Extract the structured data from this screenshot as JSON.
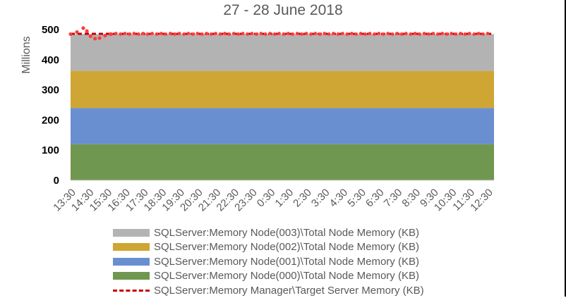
{
  "chart_data": {
    "type": "area",
    "title": "27 - 28 June 2018",
    "ylabel": "Millions",
    "xlabel": "",
    "ylim": [
      0,
      500
    ],
    "yticks": [
      "0",
      "100",
      "200",
      "300",
      "400",
      "500"
    ],
    "categories": [
      "13:30",
      "14:30",
      "15:30",
      "16:30",
      "17:30",
      "18:30",
      "19:30",
      "20:30",
      "21:30",
      "22:30",
      "23:30",
      "0:30",
      "1:30",
      "2:30",
      "3:30",
      "4:30",
      "5:30",
      "6:30",
      "7:30",
      "8:30",
      "9:30",
      "10:30",
      "11:30",
      "12:30"
    ],
    "stacked_series": [
      {
        "name": "SQLServer:Memory Node(000)\\Total Node Memory (KB)",
        "color": "#70974f",
        "value": 120
      },
      {
        "name": "SQLServer:Memory Node(001)\\Total Node Memory (KB)",
        "color": "#6a8fd1",
        "value": 120
      },
      {
        "name": "SQLServer:Memory Node(002)\\Total Node Memory (KB)",
        "color": "#cfa533",
        "value": 123
      },
      {
        "name": "SQLServer:Memory Node(003)\\Total Node Memory (KB)",
        "color": "#b3b3b3",
        "value": 122
      }
    ],
    "line_series": {
      "name": "SQLServer:Memory Manager\\Target Server Memory (KB)",
      "color": "#c00000",
      "style": "dashed",
      "value": 486
    },
    "markers": {
      "color": "#ff3b3b",
      "points": [
        [
          0.0,
          485
        ],
        [
          0.35,
          492
        ],
        [
          0.7,
          505
        ],
        [
          0.9,
          495
        ],
        [
          1.1,
          478
        ],
        [
          1.35,
          470
        ],
        [
          1.6,
          472
        ],
        [
          1.9,
          480
        ],
        [
          2.2,
          485
        ]
      ]
    },
    "legend_position": "bottom",
    "grid": false
  },
  "legend": [
    {
      "label": "SQLServer:Memory Node(003)\\Total Node Memory (KB)",
      "color": "#b3b3b3",
      "kind": "area"
    },
    {
      "label": "SQLServer:Memory Node(002)\\Total Node Memory (KB)",
      "color": "#cfa533",
      "kind": "area"
    },
    {
      "label": "SQLServer:Memory Node(001)\\Total Node Memory (KB)",
      "color": "#6a8fd1",
      "kind": "area"
    },
    {
      "label": "SQLServer:Memory Node(000)\\Total Node Memory (KB)",
      "color": "#70974f",
      "kind": "area"
    },
    {
      "label": "SQLServer:Memory Manager\\Target Server Memory (KB)",
      "color": "#c00000",
      "kind": "dashed-line"
    }
  ]
}
